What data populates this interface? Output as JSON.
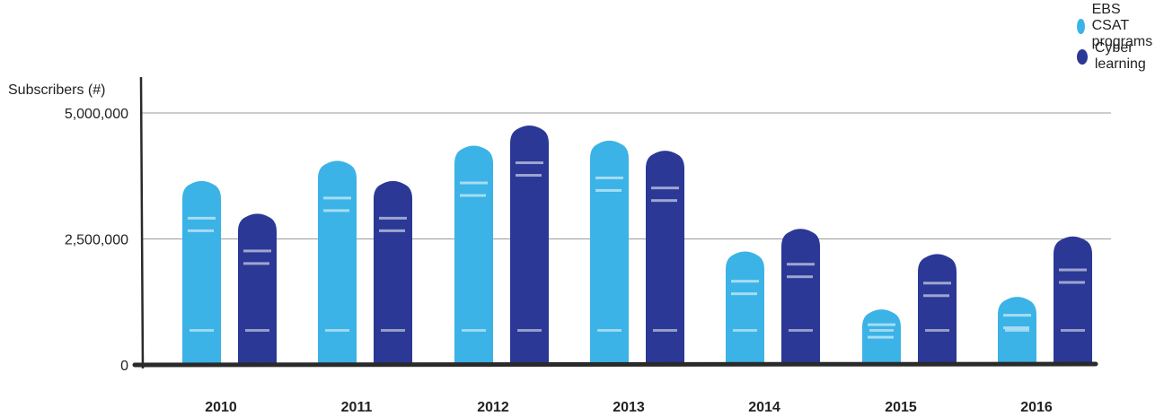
{
  "chart_data": {
    "type": "bar",
    "ylabel": "Subscribers (#)",
    "ylim": [
      0,
      5000000
    ],
    "yticks": [
      {
        "value": 0,
        "label": "0"
      },
      {
        "value": 2500000,
        "label": "2,500,000"
      },
      {
        "value": 5000000,
        "label": "5,000,000"
      }
    ],
    "categories": [
      "2010",
      "2011",
      "2012",
      "2013",
      "2014",
      "2015",
      "2016"
    ],
    "series": [
      {
        "name": "EBS CSAT programs",
        "color": "#3bb3e6",
        "values": [
          3650000,
          4050000,
          4350000,
          4450000,
          2250000,
          1100000,
          1350000
        ]
      },
      {
        "name": "Cyber learning",
        "color": "#2b3895",
        "values": [
          3000000,
          3650000,
          4750000,
          4250000,
          2700000,
          2200000,
          2550000
        ]
      }
    ],
    "grid": true,
    "legend_position": "top-right"
  }
}
